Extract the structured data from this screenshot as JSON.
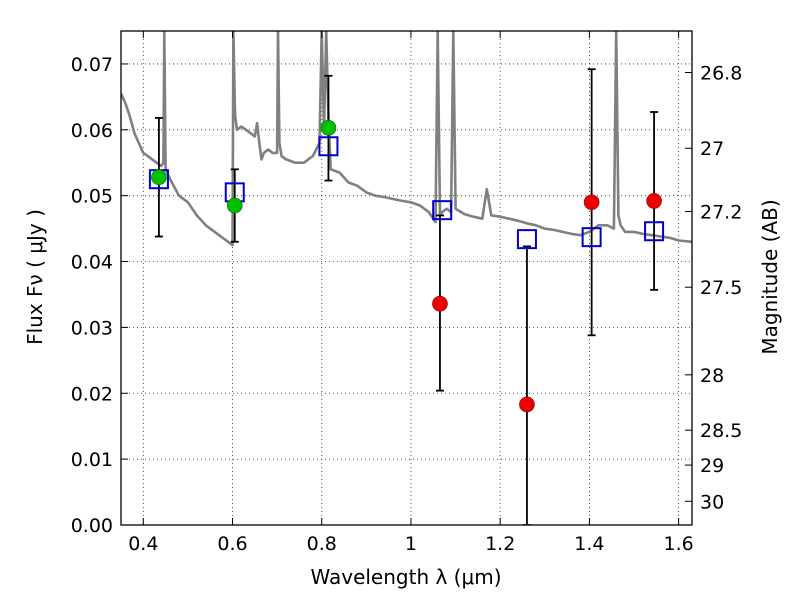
{
  "chart_data": {
    "type": "scatter",
    "title": "",
    "xlabel": "Wavelength  λ (μm)",
    "ylabel": "Flux  Fν  ( μJy )",
    "ylabel_right": "Magnitude (AB)",
    "xlim": [
      0.35,
      1.63
    ],
    "ylim": [
      0.0,
      0.075
    ],
    "grid": true,
    "x_ticks": [
      0.4,
      0.6,
      0.8,
      1.0,
      1.2,
      1.4,
      1.6
    ],
    "x_tick_labels": [
      "0.4",
      "0.6",
      "0.8",
      "1",
      "1.2",
      "1.4",
      "1.6"
    ],
    "y_ticks": [
      0.0,
      0.01,
      0.02,
      0.03,
      0.04,
      0.05,
      0.06,
      0.07
    ],
    "y_tick_labels": [
      "0.00",
      "0.01",
      "0.02",
      "0.03",
      "0.04",
      "0.05",
      "0.06",
      "0.07"
    ],
    "right_ticks": [
      {
        "label": "26.8",
        "flux": 0.0687
      },
      {
        "label": "27",
        "flux": 0.0572
      },
      {
        "label": "27.2",
        "flux": 0.0476
      },
      {
        "label": "27.5",
        "flux": 0.0361
      },
      {
        "label": "28",
        "flux": 0.0228
      },
      {
        "label": "28.5",
        "flux": 0.0144
      },
      {
        "label": "29",
        "flux": 0.0091
      },
      {
        "label": "30",
        "flux": 0.0036
      }
    ],
    "series": [
      {
        "kind": "model_sed_line",
        "color": "#808080",
        "x": [
          0.35,
          0.36,
          0.37,
          0.38,
          0.39,
          0.4,
          0.41,
          0.42,
          0.43,
          0.44,
          0.445,
          0.447,
          0.45,
          0.46,
          0.48,
          0.5,
          0.52,
          0.54,
          0.56,
          0.58,
          0.6,
          0.602,
          0.605,
          0.606,
          0.61,
          0.62,
          0.63,
          0.64,
          0.65,
          0.655,
          0.66,
          0.665,
          0.67,
          0.68,
          0.69,
          0.7,
          0.702,
          0.705,
          0.71,
          0.72,
          0.74,
          0.76,
          0.78,
          0.795,
          0.8,
          0.805,
          0.81,
          0.815,
          0.82,
          0.84,
          0.86,
          0.88,
          0.9,
          0.92,
          0.94,
          0.96,
          0.98,
          1.0,
          1.02,
          1.04,
          1.055,
          1.06,
          1.065,
          1.07,
          1.08,
          1.09,
          1.095,
          1.1,
          1.12,
          1.14,
          1.16,
          1.17,
          1.18,
          1.2,
          1.22,
          1.24,
          1.26,
          1.28,
          1.3,
          1.32,
          1.34,
          1.36,
          1.38,
          1.4,
          1.42,
          1.44,
          1.455,
          1.46,
          1.465,
          1.47,
          1.48,
          1.5,
          1.52,
          1.54,
          1.56,
          1.58,
          1.6,
          1.63
        ],
        "y": [
          0.0655,
          0.064,
          0.062,
          0.0595,
          0.058,
          0.0565,
          0.056,
          0.0555,
          0.055,
          0.0545,
          0.055,
          0.075,
          0.054,
          0.0525,
          0.05,
          0.049,
          0.047,
          0.0455,
          0.0445,
          0.0435,
          0.0425,
          0.075,
          0.064,
          0.062,
          0.06,
          0.0605,
          0.06,
          0.0595,
          0.059,
          0.061,
          0.058,
          0.0555,
          0.0565,
          0.057,
          0.0565,
          0.0565,
          0.075,
          0.058,
          0.056,
          0.0555,
          0.055,
          0.055,
          0.056,
          0.058,
          0.075,
          0.06,
          0.075,
          0.062,
          0.054,
          0.0535,
          0.052,
          0.0515,
          0.0505,
          0.05,
          0.0498,
          0.0495,
          0.0492,
          0.049,
          0.0485,
          0.0475,
          0.046,
          0.075,
          0.047,
          0.0475,
          0.048,
          0.0475,
          0.075,
          0.048,
          0.0472,
          0.0468,
          0.0465,
          0.051,
          0.047,
          0.0468,
          0.0465,
          0.0462,
          0.0458,
          0.0455,
          0.045,
          0.0448,
          0.0445,
          0.0442,
          0.044,
          0.0445,
          0.0455,
          0.0455,
          0.045,
          0.075,
          0.047,
          0.0455,
          0.0445,
          0.0445,
          0.0442,
          0.044,
          0.0438,
          0.0436,
          0.0432,
          0.043
        ]
      },
      {
        "kind": "observed_green",
        "color": "#00c000",
        "points": [
          {
            "x": 0.435,
            "y": 0.0528,
            "err_low": 0.0438,
            "err_high": 0.0618
          },
          {
            "x": 0.605,
            "y": 0.0485,
            "err_low": 0.043,
            "err_high": 0.054
          },
          {
            "x": 0.815,
            "y": 0.0603,
            "err_low": 0.0523,
            "err_high": 0.0682
          }
        ]
      },
      {
        "kind": "observed_red",
        "color": "#ee0000",
        "points": [
          {
            "x": 1.065,
            "y": 0.0336,
            "err_low": 0.0204,
            "err_high": 0.047
          },
          {
            "x": 1.26,
            "y": 0.0183,
            "err_low": 0.0,
            "err_high": 0.0423
          },
          {
            "x": 1.405,
            "y": 0.049,
            "err_low": 0.0288,
            "err_high": 0.0692
          },
          {
            "x": 1.545,
            "y": 0.0492,
            "err_low": 0.0357,
            "err_high": 0.0627
          }
        ]
      },
      {
        "kind": "model_band_flux",
        "color": "#0000cc",
        "marker": "open-square",
        "x": [
          0.435,
          0.605,
          0.815,
          1.07,
          1.26,
          1.405,
          1.545
        ],
        "y": [
          0.0525,
          0.0505,
          0.0575,
          0.0478,
          0.0434,
          0.0437,
          0.0446
        ]
      }
    ]
  }
}
